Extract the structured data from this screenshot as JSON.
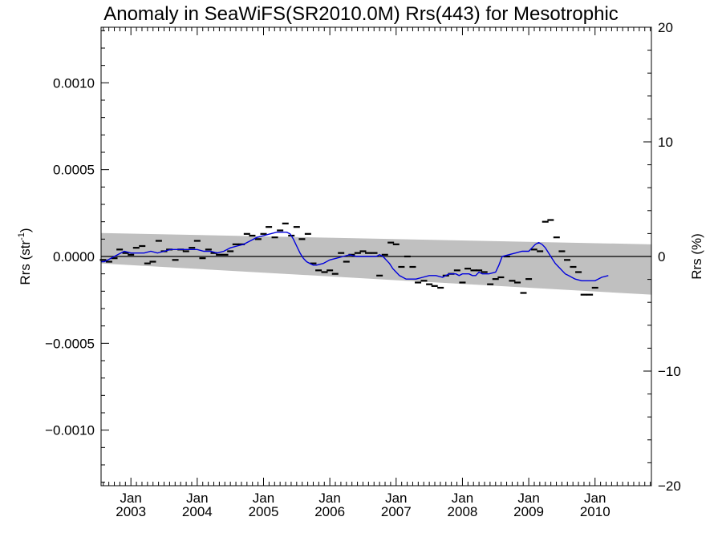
{
  "chart_data": {
    "type": "line",
    "title": "Anomaly in SeaWiFS(SR2010.0M) Rrs(443) for Mesotrophic",
    "ylabel_left": "Rrs (str",
    "ylabel_left_sup": "-1",
    "ylabel_left_close": ")",
    "ylabel_right": "Rrs (%)",
    "xlim": [
      2002.55,
      2010.85
    ],
    "ylim_left": [
      -0.00132,
      0.00132
    ],
    "ylim_right": [
      -20,
      20
    ],
    "xtick_labels": [
      {
        "value": 2003.0,
        "top": "Jan",
        "bottom": "2003"
      },
      {
        "value": 2004.0,
        "top": "Jan",
        "bottom": "2004"
      },
      {
        "value": 2005.0,
        "top": "Jan",
        "bottom": "2005"
      },
      {
        "value": 2006.0,
        "top": "Jan",
        "bottom": "2006"
      },
      {
        "value": 2007.0,
        "top": "Jan",
        "bottom": "2007"
      },
      {
        "value": 2008.0,
        "top": "Jan",
        "bottom": "2008"
      },
      {
        "value": 2009.0,
        "top": "Jan",
        "bottom": "2009"
      },
      {
        "value": 2010.0,
        "top": "Jan",
        "bottom": "2010"
      }
    ],
    "ytick_left": [
      {
        "value": 0.001,
        "label": "0.0010"
      },
      {
        "value": 0.0005,
        "label": "0.0005"
      },
      {
        "value": 0.0,
        "label": "0.0000"
      },
      {
        "value": -0.0005,
        "label": "−0.0005"
      },
      {
        "value": -0.001,
        "label": "−0.0010"
      }
    ],
    "ytick_right": [
      {
        "value": 20,
        "label": "20"
      },
      {
        "value": 10,
        "label": "10"
      },
      {
        "value": 0,
        "label": "0"
      },
      {
        "value": -10,
        "label": "−10"
      },
      {
        "value": -20,
        "label": "−20"
      }
    ],
    "zero_line": 0.0,
    "band": {
      "color": "#c0c0c0",
      "upper": [
        [
          2002.55,
          0.000135
        ],
        [
          2010.85,
          7e-05
        ]
      ],
      "lower": [
        [
          2002.55,
          -4e-05
        ],
        [
          2010.85,
          -0.00022
        ]
      ]
    },
    "series": [
      {
        "kind": "monthly_points",
        "color": "#000000",
        "points": [
          [
            2002.58,
            -2e-05
          ],
          [
            2002.67,
            -3e-05
          ],
          [
            2002.75,
            -1e-05
          ],
          [
            2002.83,
            4e-05
          ],
          [
            2002.92,
            2e-05
          ],
          [
            2003.0,
            1e-05
          ],
          [
            2003.08,
            5e-05
          ],
          [
            2003.17,
            6e-05
          ],
          [
            2003.25,
            -4e-05
          ],
          [
            2003.33,
            -3e-05
          ],
          [
            2003.42,
            9e-05
          ],
          [
            2003.5,
            3e-05
          ],
          [
            2003.58,
            4e-05
          ],
          [
            2003.67,
            -2e-05
          ],
          [
            2003.75,
            4e-05
          ],
          [
            2003.83,
            3e-05
          ],
          [
            2003.92,
            5e-05
          ],
          [
            2004.0,
            9e-05
          ],
          [
            2004.08,
            -1e-05
          ],
          [
            2004.17,
            4e-05
          ],
          [
            2004.25,
            2e-05
          ],
          [
            2004.33,
            1e-05
          ],
          [
            2004.42,
            1e-05
          ],
          [
            2004.5,
            3e-05
          ],
          [
            2004.58,
            7e-05
          ],
          [
            2004.67,
            7e-05
          ],
          [
            2004.75,
            0.00013
          ],
          [
            2004.83,
            0.00012
          ],
          [
            2004.92,
            0.0001
          ],
          [
            2005.0,
            0.00013
          ],
          [
            2005.08,
            0.00017
          ],
          [
            2005.17,
            0.00011
          ],
          [
            2005.25,
            0.00015
          ],
          [
            2005.33,
            0.00019
          ],
          [
            2005.42,
            0.00012
          ],
          [
            2005.5,
            0.00017
          ],
          [
            2005.58,
            0.0001
          ],
          [
            2005.67,
            0.00013
          ],
          [
            2005.75,
            -4e-05
          ],
          [
            2005.83,
            -8e-05
          ],
          [
            2005.92,
            -9e-05
          ],
          [
            2006.0,
            -8e-05
          ],
          [
            2006.08,
            -0.0001
          ],
          [
            2006.17,
            2e-05
          ],
          [
            2006.25,
            -3e-05
          ],
          [
            2006.33,
            1e-05
          ],
          [
            2006.42,
            2e-05
          ],
          [
            2006.5,
            3e-05
          ],
          [
            2006.58,
            2e-05
          ],
          [
            2006.67,
            2e-05
          ],
          [
            2006.75,
            -0.00011
          ],
          [
            2006.83,
            1e-05
          ],
          [
            2006.92,
            8e-05
          ],
          [
            2007.0,
            7e-05
          ],
          [
            2007.08,
            -6e-05
          ],
          [
            2007.17,
            0.0
          ],
          [
            2007.25,
            -6e-05
          ],
          [
            2007.33,
            -0.00015
          ],
          [
            2007.42,
            -0.00014
          ],
          [
            2007.5,
            -0.00016
          ],
          [
            2007.58,
            -0.00017
          ],
          [
            2007.67,
            -0.00018
          ],
          [
            2007.75,
            -0.00011
          ],
          [
            2007.83,
            -0.0001
          ],
          [
            2007.92,
            -8e-05
          ],
          [
            2008.0,
            -0.00015
          ],
          [
            2008.08,
            -7e-05
          ],
          [
            2008.17,
            -8e-05
          ],
          [
            2008.25,
            -8e-05
          ],
          [
            2008.33,
            -9e-05
          ],
          [
            2008.42,
            -0.00016
          ],
          [
            2008.5,
            -0.00013
          ],
          [
            2008.58,
            -0.00012
          ],
          [
            2008.67,
            0.0
          ],
          [
            2008.75,
            -0.00014
          ],
          [
            2008.83,
            -0.00015
          ],
          [
            2008.92,
            -0.00021
          ],
          [
            2009.0,
            -0.00013
          ],
          [
            2009.08,
            4e-05
          ],
          [
            2009.17,
            3e-05
          ],
          [
            2009.25,
            0.0002
          ],
          [
            2009.33,
            0.00021
          ],
          [
            2009.42,
            0.00011
          ],
          [
            2009.5,
            3e-05
          ],
          [
            2009.58,
            -2e-05
          ],
          [
            2009.67,
            -6e-05
          ],
          [
            2009.75,
            -9e-05
          ],
          [
            2009.83,
            -0.00022
          ],
          [
            2009.92,
            -0.00022
          ],
          [
            2010.0,
            -0.00018
          ]
        ]
      },
      {
        "kind": "running_mean",
        "color": "#0000dd",
        "points": [
          [
            2002.55,
            -3e-05
          ],
          [
            2002.6,
            -3e-05
          ],
          [
            2002.7,
            -1e-05
          ],
          [
            2002.8,
            1e-05
          ],
          [
            2002.9,
            3e-05
          ],
          [
            2003.0,
            2e-05
          ],
          [
            2003.1,
            2e-05
          ],
          [
            2003.2,
            2e-05
          ],
          [
            2003.3,
            3e-05
          ],
          [
            2003.4,
            2e-05
          ],
          [
            2003.5,
            3e-05
          ],
          [
            2003.6,
            4e-05
          ],
          [
            2003.7,
            4e-05
          ],
          [
            2003.8,
            4e-05
          ],
          [
            2003.9,
            4e-05
          ],
          [
            2004.0,
            4e-05
          ],
          [
            2004.1,
            3e-05
          ],
          [
            2004.2,
            3e-05
          ],
          [
            2004.3,
            2e-05
          ],
          [
            2004.4,
            3e-05
          ],
          [
            2004.5,
            5e-05
          ],
          [
            2004.6,
            6e-05
          ],
          [
            2004.7,
            7e-05
          ],
          [
            2004.8,
            9e-05
          ],
          [
            2004.9,
            0.00011
          ],
          [
            2005.0,
            0.00012
          ],
          [
            2005.1,
            0.00013
          ],
          [
            2005.2,
            0.00014
          ],
          [
            2005.3,
            0.00014
          ],
          [
            2005.35,
            0.00014
          ],
          [
            2005.4,
            0.00013
          ],
          [
            2005.45,
            0.0001
          ],
          [
            2005.5,
            6e-05
          ],
          [
            2005.55,
            2e-05
          ],
          [
            2005.6,
            -1e-05
          ],
          [
            2005.65,
            -3e-05
          ],
          [
            2005.7,
            -4e-05
          ],
          [
            2005.75,
            -5e-05
          ],
          [
            2005.8,
            -5e-05
          ],
          [
            2005.9,
            -4e-05
          ],
          [
            2006.0,
            -2e-05
          ],
          [
            2006.1,
            -1e-05
          ],
          [
            2006.2,
            0.0
          ],
          [
            2006.3,
            1e-05
          ],
          [
            2006.4,
            0.0
          ],
          [
            2006.5,
            0.0
          ],
          [
            2006.6,
            0.0
          ],
          [
            2006.7,
            0.0
          ],
          [
            2006.75,
            1e-05
          ],
          [
            2006.8,
            0.0
          ],
          [
            2006.85,
            -2e-05
          ],
          [
            2006.9,
            -4e-05
          ],
          [
            2006.95,
            -7e-05
          ],
          [
            2007.0,
            -9e-05
          ],
          [
            2007.05,
            -0.00011
          ],
          [
            2007.1,
            -0.00012
          ],
          [
            2007.15,
            -0.00013
          ],
          [
            2007.2,
            -0.00013
          ],
          [
            2007.3,
            -0.00013
          ],
          [
            2007.4,
            -0.00012
          ],
          [
            2007.5,
            -0.00011
          ],
          [
            2007.6,
            -0.00011
          ],
          [
            2007.7,
            -0.00012
          ],
          [
            2007.75,
            -0.00011
          ],
          [
            2007.8,
            -0.0001
          ],
          [
            2007.9,
            -0.0001
          ],
          [
            2007.95,
            -0.00011
          ],
          [
            2008.0,
            -0.0001
          ],
          [
            2008.1,
            -0.0001
          ],
          [
            2008.15,
            -0.00011
          ],
          [
            2008.2,
            -0.00011
          ],
          [
            2008.25,
            -9e-05
          ],
          [
            2008.3,
            -0.0001
          ],
          [
            2008.4,
            -0.0001
          ],
          [
            2008.5,
            -9e-05
          ],
          [
            2008.55,
            -5e-05
          ],
          [
            2008.6,
            0.0
          ],
          [
            2008.7,
            1e-05
          ],
          [
            2008.8,
            2e-05
          ],
          [
            2008.9,
            3e-05
          ],
          [
            2009.0,
            3e-05
          ],
          [
            2009.05,
            5e-05
          ],
          [
            2009.1,
            7e-05
          ],
          [
            2009.15,
            8e-05
          ],
          [
            2009.2,
            7e-05
          ],
          [
            2009.25,
            5e-05
          ],
          [
            2009.3,
            2e-05
          ],
          [
            2009.35,
            -1e-05
          ],
          [
            2009.4,
            -4e-05
          ],
          [
            2009.45,
            -6e-05
          ],
          [
            2009.5,
            -8e-05
          ],
          [
            2009.55,
            -0.0001
          ],
          [
            2009.6,
            -0.00011
          ],
          [
            2009.65,
            -0.00012
          ],
          [
            2009.7,
            -0.00013
          ],
          [
            2009.8,
            -0.00014
          ],
          [
            2009.9,
            -0.00014
          ],
          [
            2010.0,
            -0.00014
          ],
          [
            2010.1,
            -0.00012
          ],
          [
            2010.2,
            -0.00011
          ]
        ]
      }
    ]
  }
}
